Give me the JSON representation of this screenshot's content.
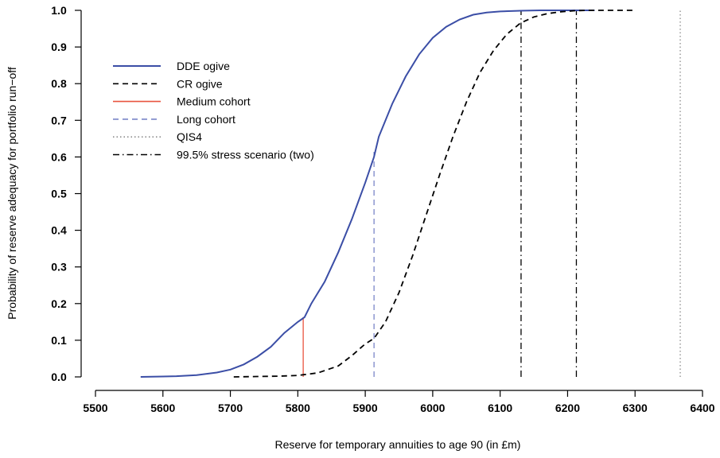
{
  "chart_data": {
    "type": "line",
    "title": "",
    "xlabel": "Reserve for temporary annuities to age 90 (in £m)",
    "ylabel": "Probability of reserve adequacy for portfolio run−off",
    "xlim": [
      5500,
      6400
    ],
    "ylim": [
      0,
      1
    ],
    "x_ticks": [
      "5500",
      "5600",
      "5700",
      "5800",
      "5900",
      "6000",
      "6100",
      "6200",
      "6300",
      "6400"
    ],
    "y_ticks": [
      "0.0",
      "0.1",
      "0.2",
      "0.3",
      "0.4",
      "0.5",
      "0.6",
      "0.7",
      "0.8",
      "0.9",
      "1.0"
    ],
    "grid": false,
    "legend_position": "top-left",
    "series": [
      {
        "name": "DDE ogive",
        "style": "solid",
        "color": "#3b4ea6",
        "points": [
          [
            5567,
            0
          ],
          [
            5600,
            0.001
          ],
          [
            5620,
            0.002
          ],
          [
            5650,
            0.005
          ],
          [
            5680,
            0.012
          ],
          [
            5700,
            0.02
          ],
          [
            5720,
            0.034
          ],
          [
            5740,
            0.055
          ],
          [
            5760,
            0.082
          ],
          [
            5780,
            0.12
          ],
          [
            5800,
            0.15
          ],
          [
            5810,
            0.163
          ],
          [
            5820,
            0.2
          ],
          [
            5840,
            0.26
          ],
          [
            5860,
            0.34
          ],
          [
            5880,
            0.43
          ],
          [
            5900,
            0.53
          ],
          [
            5913,
            0.6
          ],
          [
            5920,
            0.655
          ],
          [
            5940,
            0.745
          ],
          [
            5960,
            0.82
          ],
          [
            5980,
            0.88
          ],
          [
            6000,
            0.925
          ],
          [
            6020,
            0.955
          ],
          [
            6040,
            0.975
          ],
          [
            6060,
            0.988
          ],
          [
            6080,
            0.994
          ],
          [
            6100,
            0.997
          ],
          [
            6130,
            0.999
          ],
          [
            6160,
            1
          ],
          [
            6240,
            1
          ]
        ]
      },
      {
        "name": "CR ogive",
        "style": "dashed",
        "color": "#000000",
        "points": [
          [
            5705,
            0
          ],
          [
            5740,
            0.001
          ],
          [
            5770,
            0.002
          ],
          [
            5800,
            0.004
          ],
          [
            5830,
            0.011
          ],
          [
            5860,
            0.03
          ],
          [
            5880,
            0.058
          ],
          [
            5900,
            0.09
          ],
          [
            5913,
            0.105
          ],
          [
            5930,
            0.15
          ],
          [
            5950,
            0.23
          ],
          [
            5970,
            0.33
          ],
          [
            5990,
            0.44
          ],
          [
            6010,
            0.55
          ],
          [
            6030,
            0.655
          ],
          [
            6050,
            0.75
          ],
          [
            6070,
            0.83
          ],
          [
            6090,
            0.89
          ],
          [
            6110,
            0.935
          ],
          [
            6130,
            0.965
          ],
          [
            6150,
            0.982
          ],
          [
            6170,
            0.991
          ],
          [
            6190,
            0.996
          ],
          [
            6210,
            0.999
          ],
          [
            6230,
            1
          ],
          [
            6300,
            1
          ]
        ]
      }
    ],
    "vertical_lines": [
      {
        "name": "Medium cohort",
        "x": 5808,
        "y_top": 0.163,
        "style": "solid",
        "color": "#e8543f"
      },
      {
        "name": "Long cohort",
        "x": 5913,
        "y_top": 0.62,
        "style": "dashed",
        "color": "#7a86c8"
      },
      {
        "name": "QIS4",
        "x": 6367,
        "y_top": 1.0,
        "style": "dotted",
        "color": "#8a8a8a"
      },
      {
        "name": "99.5% stress scenario (two)",
        "x": 6131,
        "y_top": 1.0,
        "style": "dotdash",
        "color": "#000000"
      },
      {
        "name": "99.5% stress scenario (two)",
        "x": 6213,
        "y_top": 1.0,
        "style": "dotdash",
        "color": "#000000"
      }
    ],
    "legend": [
      {
        "label": "DDE ogive",
        "style": "solid",
        "color": "#3b4ea6"
      },
      {
        "label": "CR ogive",
        "style": "dashed",
        "color": "#000000"
      },
      {
        "label": "Medium cohort",
        "style": "solid",
        "color": "#e8543f"
      },
      {
        "label": "Long cohort",
        "style": "dashed",
        "color": "#7a86c8"
      },
      {
        "label": "QIS4",
        "style": "dotted",
        "color": "#8a8a8a"
      },
      {
        "label": "99.5% stress scenario (two)",
        "style": "dotdash",
        "color": "#000000"
      }
    ]
  }
}
